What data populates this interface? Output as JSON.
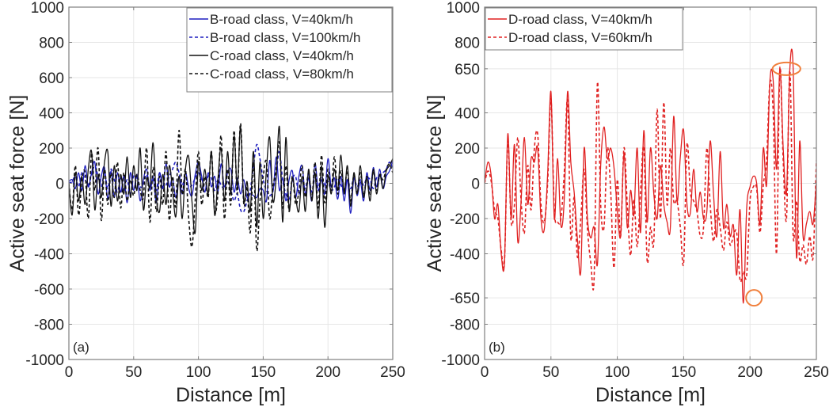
{
  "chart_data": [
    {
      "type": "line",
      "panel_label": "(a)",
      "xlabel": "Distance [m]",
      "ylabel": "Active seat force [N]",
      "xlim": [
        0,
        250
      ],
      "ylim": [
        -1000,
        1000
      ],
      "xticks": [
        0,
        50,
        100,
        150,
        200,
        250
      ],
      "xtick_labels": [
        "0",
        "50",
        "100",
        "150",
        "200",
        "250"
      ],
      "yticks": [
        -1000,
        -800,
        -600,
        -400,
        -200,
        0,
        200,
        400,
        600,
        800,
        1000
      ],
      "ytick_labels": [
        "-1000",
        "-800",
        "-600",
        "-400",
        "-200",
        "0",
        "200",
        "400",
        "600",
        "800",
        "1000"
      ],
      "grid": true,
      "legend_position": "top-right",
      "x": [
        0,
        2.5,
        5,
        7.5,
        10,
        12.5,
        15,
        17.5,
        20,
        22.5,
        25,
        27.5,
        30,
        32.5,
        35,
        37.5,
        40,
        42.5,
        45,
        47.5,
        50,
        52.5,
        55,
        57.5,
        60,
        62.5,
        65,
        67.5,
        70,
        72.5,
        75,
        77.5,
        80,
        82.5,
        85,
        87.5,
        90,
        92.5,
        95,
        97.5,
        100,
        102.5,
        105,
        107.5,
        110,
        112.5,
        115,
        117.5,
        120,
        122.5,
        125,
        127.5,
        130,
        132.5,
        135,
        137.5,
        140,
        142.5,
        145,
        147.5,
        150,
        152.5,
        155,
        157.5,
        160,
        162.5,
        165,
        167.5,
        170,
        172.5,
        175,
        177.5,
        180,
        182.5,
        185,
        187.5,
        190,
        192.5,
        195,
        197.5,
        200,
        202.5,
        205,
        207.5,
        210,
        212.5,
        215,
        217.5,
        220,
        222.5,
        225,
        227.5,
        230,
        232.5,
        235,
        237.5,
        240,
        242.5,
        245,
        247.5,
        250
      ],
      "series": [
        {
          "name": "B-road class, V=40km/h",
          "color": "#1f1fbf",
          "dash": "solid",
          "values": [
            10,
            20,
            -30,
            60,
            -40,
            100,
            -20,
            60,
            120,
            -60,
            40,
            90,
            -90,
            70,
            -80,
            60,
            -50,
            40,
            -110,
            60,
            -40,
            50,
            -100,
            20,
            80,
            -40,
            40,
            -110,
            60,
            -30,
            110,
            -20,
            30,
            -80,
            40,
            -60,
            60,
            -30,
            -70,
            50,
            120,
            40,
            -50,
            60,
            -20,
            40,
            -50,
            110,
            -20,
            60,
            80,
            -50,
            30,
            -60,
            20,
            -80,
            -60,
            -70,
            -80,
            -30,
            -40,
            -100,
            130,
            -50,
            150,
            -40,
            30,
            -100,
            20,
            70,
            -80,
            40,
            100,
            -60,
            30,
            -100,
            110,
            -40,
            20,
            -60,
            140,
            -20,
            30,
            -90,
            40,
            -100,
            20,
            -170,
            30,
            -70,
            10,
            -100,
            60,
            -40,
            90,
            -20,
            80,
            -30,
            40,
            70,
            130
          ]
        },
        {
          "name": "B-road class, V=100km/h",
          "color": "#1f1fbf",
          "dash": "dashed",
          "values": [
            0,
            10,
            40,
            -20,
            60,
            20,
            -10,
            50,
            100,
            40,
            -20,
            60,
            -30,
            80,
            20,
            -50,
            30,
            -40,
            20,
            -60,
            40,
            30,
            -20,
            -10,
            50,
            -30,
            20,
            -40,
            60,
            -20,
            -10,
            40,
            80,
            120,
            60,
            -10,
            40,
            -20,
            -10,
            30,
            60,
            20,
            -10,
            40,
            30,
            -40,
            20,
            -10,
            -30,
            10,
            -40,
            -100,
            -60,
            -150,
            -160,
            -100,
            -40,
            100,
            220,
            140,
            20,
            -40,
            -70,
            -40,
            60,
            180,
            20,
            -60,
            -100,
            20,
            40,
            -60,
            20,
            -30,
            50,
            -50,
            30,
            -20,
            40,
            -10,
            10,
            -40,
            -20,
            30,
            -10,
            -40,
            20,
            -30,
            30,
            -20,
            20,
            -10,
            30,
            20,
            -30,
            30,
            40,
            60,
            80,
            120,
            90
          ]
        },
        {
          "name": "C-road class, V=40km/h",
          "color": "#111111",
          "dash": "solid",
          "values": [
            0,
            -180,
            60,
            -100,
            40,
            -120,
            80,
            180,
            -150,
            50,
            -80,
            120,
            180,
            -130,
            100,
            -100,
            50,
            -60,
            150,
            -80,
            100,
            -40,
            200,
            -150,
            30,
            -20,
            230,
            -80,
            -160,
            50,
            -120,
            100,
            -40,
            -190,
            40,
            -200,
            80,
            150,
            -100,
            -280,
            120,
            -40,
            80,
            -60,
            180,
            -180,
            20,
            200,
            -100,
            180,
            -60,
            270,
            -20,
            320,
            -100,
            10,
            -160,
            180,
            -250,
            120,
            -200,
            80,
            260,
            -100,
            30,
            320,
            -220,
            260,
            -150,
            30,
            -80,
            -160,
            40,
            -160,
            80,
            -100,
            60,
            -200,
            100,
            -250,
            40,
            -60,
            80,
            -40,
            160,
            -60,
            100,
            -130,
            60,
            -60,
            100,
            -80,
            30,
            -100,
            80,
            -60,
            50,
            -30,
            70,
            100,
            140
          ]
        },
        {
          "name": "C-road class, V=80km/h",
          "color": "#111111",
          "dash": "dashed",
          "values": [
            0,
            -150,
            100,
            -180,
            20,
            60,
            -200,
            170,
            -40,
            200,
            -210,
            80,
            -120,
            60,
            -80,
            120,
            -140,
            60,
            -100,
            20,
            -70,
            50,
            -40,
            -80,
            200,
            -220,
            90,
            -160,
            40,
            -120,
            180,
            -210,
            40,
            -130,
            300,
            -60,
            80,
            -200,
            -360,
            -100,
            180,
            -120,
            40,
            -80,
            180,
            -160,
            -60,
            270,
            -200,
            80,
            -120,
            300,
            -60,
            340,
            -120,
            -20,
            -280,
            120,
            -380,
            -100,
            40,
            120,
            -200,
            -20,
            80,
            230,
            -140,
            100,
            -160,
            40,
            -120,
            -50,
            100,
            -80,
            60,
            -90,
            120,
            -140,
            160,
            -110,
            80,
            -40,
            150,
            -60,
            70,
            -40,
            70,
            -100,
            50,
            -60,
            60,
            -70,
            40,
            -60,
            70,
            -40,
            50,
            20,
            80,
            110,
            60
          ]
        }
      ]
    },
    {
      "type": "line",
      "panel_label": "(b)",
      "xlabel": "Distance [m]",
      "ylabel": "Active seat force [N]",
      "xlim": [
        0,
        250
      ],
      "ylim": [
        -1000,
        1000
      ],
      "xticks": [
        0,
        50,
        100,
        150,
        200,
        250
      ],
      "xtick_labels": [
        "0",
        "50",
        "100",
        "150",
        "200",
        "250"
      ],
      "yticks": [
        -1000,
        -800,
        -650,
        -400,
        -200,
        0,
        200,
        400,
        650,
        800,
        1000
      ],
      "ytick_labels": [
        "-1000",
        "-800",
        "-650",
        "-400",
        "-200",
        "0",
        "200",
        "400",
        "650",
        "800",
        "1000"
      ],
      "grid": true,
      "legend_position": "top-left",
      "annotations": [
        {
          "type": "ellipse",
          "color": "#f07f3c",
          "x_range": [
            217,
            238
          ],
          "y": 650
        },
        {
          "type": "circle",
          "color": "#f07f3c",
          "x": 203,
          "y": -650
        }
      ],
      "x": [
        0,
        2.5,
        5,
        7.5,
        10,
        12.5,
        15,
        17.5,
        20,
        22.5,
        25,
        27.5,
        30,
        32.5,
        35,
        37.5,
        40,
        42.5,
        45,
        47.5,
        50,
        52.5,
        55,
        57.5,
        60,
        62.5,
        65,
        67.5,
        70,
        72.5,
        75,
        77.5,
        80,
        82.5,
        85,
        87.5,
        90,
        92.5,
        95,
        97.5,
        100,
        102.5,
        105,
        107.5,
        110,
        112.5,
        115,
        117.5,
        120,
        122.5,
        125,
        127.5,
        130,
        132.5,
        135,
        137.5,
        140,
        142.5,
        145,
        147.5,
        150,
        152.5,
        155,
        157.5,
        160,
        162.5,
        165,
        167.5,
        170,
        172.5,
        175,
        177.5,
        180,
        182.5,
        185,
        187.5,
        190,
        192.5,
        195,
        197.5,
        200,
        202.5,
        205,
        207.5,
        210,
        212.5,
        215,
        217.5,
        220,
        222.5,
        225,
        227.5,
        230,
        232.5,
        235,
        237.5,
        240,
        242.5,
        245,
        247.5,
        250
      ],
      "series": [
        {
          "name": "D-road class, V=40km/h",
          "color": "#e02020",
          "dash": "solid",
          "values": [
            0,
            120,
            40,
            -200,
            -120,
            -400,
            -450,
            280,
            -200,
            220,
            -330,
            -100,
            260,
            -120,
            140,
            120,
            200,
            -200,
            -260,
            50,
            520,
            -200,
            140,
            -240,
            -90,
            520,
            120,
            -50,
            -320,
            -500,
            200,
            -200,
            -310,
            -250,
            -460,
            100,
            320,
            140,
            200,
            90,
            -150,
            -300,
            170,
            -250,
            -40,
            -180,
            200,
            -280,
            300,
            -220,
            200,
            -60,
            -200,
            100,
            -120,
            -220,
            -250,
            380,
            -100,
            150,
            300,
            -120,
            -170,
            80,
            -160,
            -50,
            -200,
            -160,
            240,
            -60,
            -300,
            180,
            -250,
            -120,
            -300,
            -240,
            -520,
            -150,
            -680,
            -140,
            -20,
            40,
            0,
            -230,
            200,
            -10,
            580,
            580,
            80,
            650,
            200,
            -50,
            650,
            650,
            -420,
            240,
            -300,
            -230,
            -160,
            -230,
            10
          ]
        },
        {
          "name": "D-road class, V=60km/h",
          "color": "#e02020",
          "dash": "dashed",
          "values": [
            0,
            70,
            10,
            -150,
            -200,
            -380,
            -440,
            240,
            -220,
            -120,
            260,
            -100,
            -280,
            100,
            -150,
            200,
            280,
            -120,
            -220,
            0,
            480,
            -150,
            -220,
            -200,
            60,
            470,
            -310,
            -80,
            -420,
            -200,
            80,
            -260,
            -450,
            -540,
            570,
            -120,
            -250,
            200,
            -40,
            -480,
            20,
            -300,
            200,
            -120,
            -410,
            -90,
            -360,
            -50,
            200,
            -440,
            -250,
            -330,
            420,
            -200,
            460,
            -120,
            200,
            -100,
            -100,
            -250,
            -450,
            220,
            -50,
            -100,
            -160,
            -300,
            -250,
            200,
            -120,
            -330,
            -150,
            -250,
            -380,
            -220,
            -350,
            -300,
            -280,
            -550,
            -500,
            -520,
            -100,
            -20,
            -30,
            -280,
            -10,
            130,
            570,
            400,
            -400,
            650,
            130,
            -200,
            640,
            -300,
            -100,
            -440,
            -350,
            -460,
            -300,
            -420,
            130
          ]
        }
      ]
    }
  ]
}
